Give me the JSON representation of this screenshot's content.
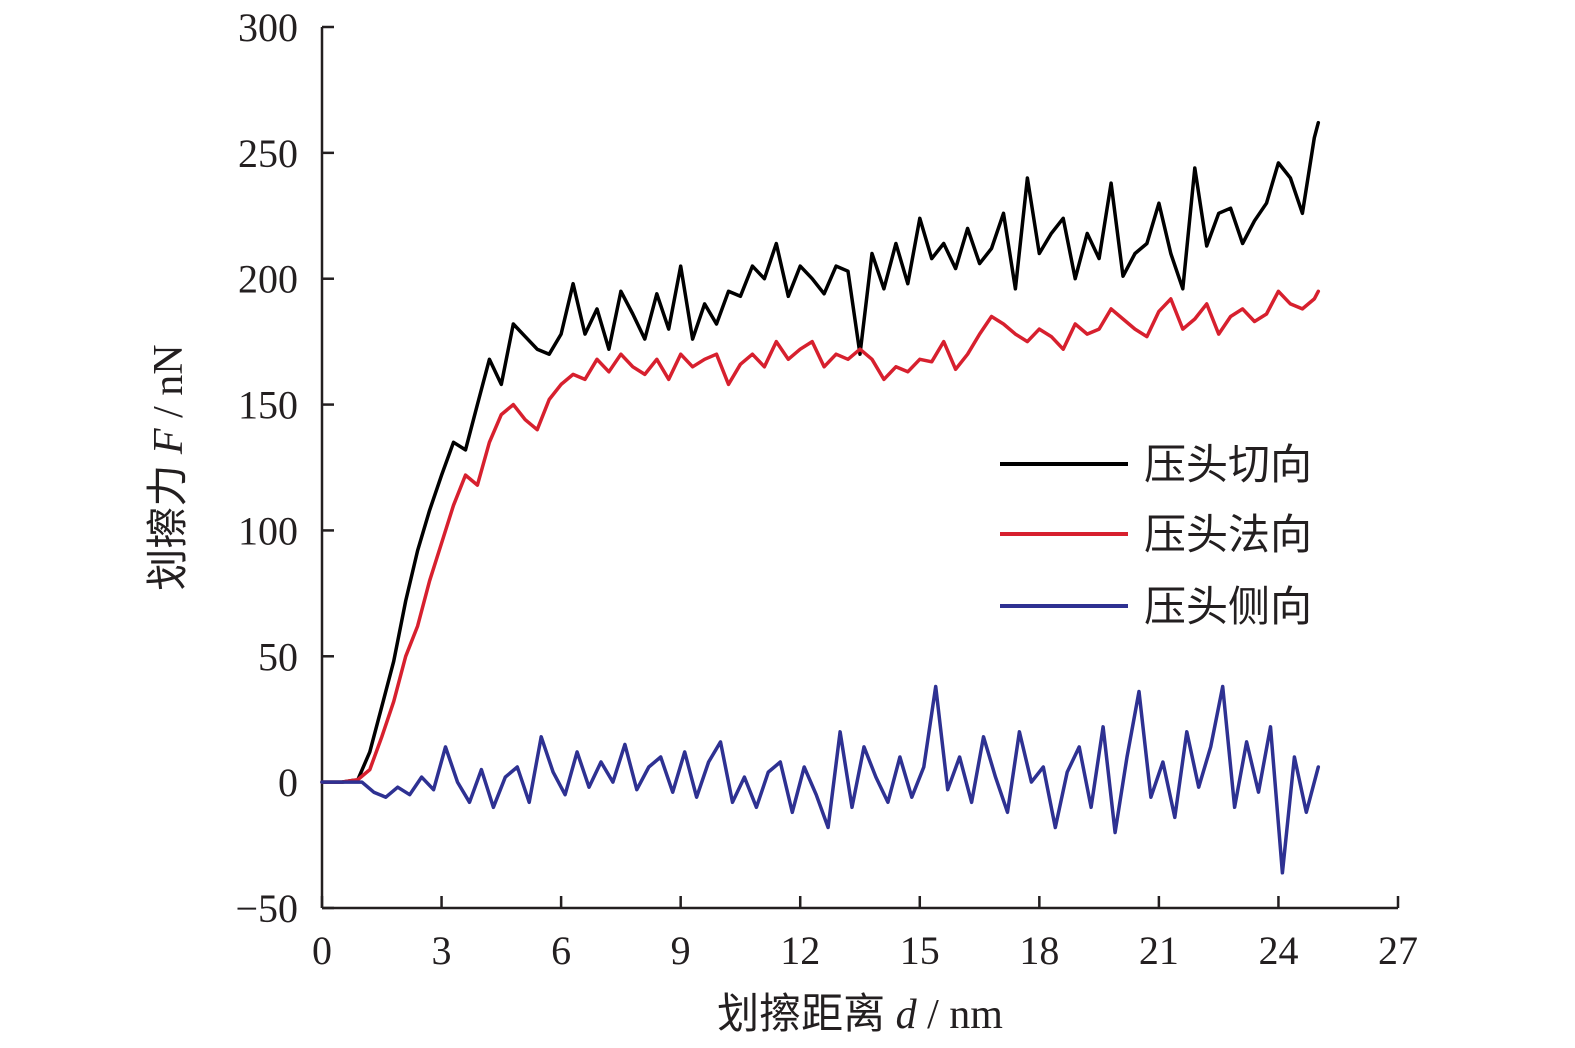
{
  "chart_data": {
    "type": "line",
    "xlabel": {
      "prefix": "划擦距离 ",
      "var": "d",
      "unit": " / nm"
    },
    "ylabel": {
      "prefix": "划擦力 ",
      "var": "F",
      "unit": " / nN"
    },
    "xlim": [
      0,
      27
    ],
    "ylim": [
      -50,
      300
    ],
    "xticks": [
      0,
      3,
      6,
      9,
      12,
      15,
      18,
      21,
      24,
      27
    ],
    "yticks": [
      -50,
      0,
      50,
      100,
      150,
      200,
      250,
      300
    ],
    "ytick_labels": [
      "−50",
      "0",
      "50",
      "100",
      "150",
      "200",
      "250",
      "300"
    ],
    "grid": false,
    "legend_position": "center-right",
    "series": [
      {
        "name": "压头切向",
        "color": "#000000",
        "x": [
          0,
          0.5,
          0.9,
          1.2,
          1.5,
          1.8,
          2.1,
          2.4,
          2.7,
          3.0,
          3.3,
          3.6,
          3.9,
          4.2,
          4.5,
          4.8,
          5.1,
          5.4,
          5.7,
          6.0,
          6.3,
          6.6,
          6.9,
          7.2,
          7.5,
          7.8,
          8.1,
          8.4,
          8.7,
          9.0,
          9.3,
          9.6,
          9.9,
          10.2,
          10.5,
          10.8,
          11.1,
          11.4,
          11.7,
          12.0,
          12.3,
          12.6,
          12.9,
          13.2,
          13.5,
          13.8,
          14.1,
          14.4,
          14.7,
          15.0,
          15.3,
          15.6,
          15.9,
          16.2,
          16.5,
          16.8,
          17.1,
          17.4,
          17.7,
          18.0,
          18.3,
          18.6,
          18.9,
          19.2,
          19.5,
          19.8,
          20.1,
          20.4,
          20.7,
          21.0,
          21.3,
          21.6,
          21.9,
          22.2,
          22.5,
          22.8,
          23.1,
          23.4,
          23.7,
          24.0,
          24.3,
          24.6,
          24.9,
          25.0
        ],
        "y": [
          0,
          0,
          1,
          12,
          30,
          48,
          72,
          92,
          108,
          122,
          135,
          132,
          150,
          168,
          158,
          182,
          177,
          172,
          170,
          178,
          198,
          178,
          188,
          172,
          195,
          186,
          176,
          194,
          180,
          205,
          176,
          190,
          182,
          195,
          193,
          205,
          200,
          214,
          193,
          205,
          200,
          194,
          205,
          203,
          170,
          210,
          196,
          214,
          198,
          224,
          208,
          214,
          204,
          220,
          206,
          212,
          226,
          196,
          240,
          210,
          218,
          224,
          200,
          218,
          208,
          238,
          201,
          210,
          214,
          230,
          210,
          196,
          244,
          213,
          226,
          228,
          214,
          223,
          230,
          246,
          240,
          226,
          256,
          262
        ]
      },
      {
        "name": "压头法向",
        "color": "#d7202e",
        "x": [
          0,
          0.5,
          0.9,
          1.2,
          1.5,
          1.8,
          2.1,
          2.4,
          2.7,
          3.0,
          3.3,
          3.6,
          3.9,
          4.2,
          4.5,
          4.8,
          5.1,
          5.4,
          5.7,
          6.0,
          6.3,
          6.6,
          6.9,
          7.2,
          7.5,
          7.8,
          8.1,
          8.4,
          8.7,
          9.0,
          9.3,
          9.6,
          9.9,
          10.2,
          10.5,
          10.8,
          11.1,
          11.4,
          11.7,
          12.0,
          12.3,
          12.6,
          12.9,
          13.2,
          13.5,
          13.8,
          14.1,
          14.4,
          14.7,
          15.0,
          15.3,
          15.6,
          15.9,
          16.2,
          16.5,
          16.8,
          17.1,
          17.4,
          17.7,
          18.0,
          18.3,
          18.6,
          18.9,
          19.2,
          19.5,
          19.8,
          20.1,
          20.4,
          20.7,
          21.0,
          21.3,
          21.6,
          21.9,
          22.2,
          22.5,
          22.8,
          23.1,
          23.4,
          23.7,
          24.0,
          24.3,
          24.6,
          24.9,
          25.0
        ],
        "y": [
          0,
          0,
          1,
          5,
          18,
          32,
          50,
          62,
          80,
          95,
          110,
          122,
          118,
          135,
          146,
          150,
          144,
          140,
          152,
          158,
          162,
          160,
          168,
          163,
          170,
          165,
          162,
          168,
          160,
          170,
          165,
          168,
          170,
          158,
          166,
          170,
          165,
          175,
          168,
          172,
          175,
          165,
          170,
          168,
          172,
          168,
          160,
          165,
          163,
          168,
          167,
          175,
          164,
          170,
          178,
          185,
          182,
          178,
          175,
          180,
          177,
          172,
          182,
          178,
          180,
          188,
          184,
          180,
          177,
          187,
          192,
          180,
          184,
          190,
          178,
          185,
          188,
          183,
          186,
          195,
          190,
          188,
          192,
          195
        ]
      },
      {
        "name": "压头侧向",
        "color": "#2e3192",
        "x": [
          0,
          0.5,
          1.0,
          1.3,
          1.6,
          1.9,
          2.2,
          2.5,
          2.8,
          3.1,
          3.4,
          3.7,
          4.0,
          4.3,
          4.6,
          4.9,
          5.2,
          5.5,
          5.8,
          6.1,
          6.4,
          6.7,
          7.0,
          7.3,
          7.6,
          7.9,
          8.2,
          8.5,
          8.8,
          9.1,
          9.4,
          9.7,
          10.0,
          10.3,
          10.6,
          10.9,
          11.2,
          11.5,
          11.8,
          12.1,
          12.4,
          12.7,
          13.0,
          13.3,
          13.6,
          13.9,
          14.2,
          14.5,
          14.8,
          15.1,
          15.4,
          15.7,
          16.0,
          16.3,
          16.6,
          16.9,
          17.2,
          17.5,
          17.8,
          18.1,
          18.4,
          18.7,
          19.0,
          19.3,
          19.6,
          19.9,
          20.2,
          20.5,
          20.8,
          21.1,
          21.4,
          21.7,
          22.0,
          22.3,
          22.6,
          22.9,
          23.2,
          23.5,
          23.8,
          24.1,
          24.4,
          24.7,
          25.0
        ],
        "y": [
          0,
          0,
          0,
          -4,
          -6,
          -2,
          -5,
          2,
          -3,
          14,
          0,
          -8,
          5,
          -10,
          2,
          6,
          -8,
          18,
          4,
          -5,
          12,
          -2,
          8,
          0,
          15,
          -3,
          6,
          10,
          -4,
          12,
          -6,
          8,
          16,
          -8,
          2,
          -10,
          4,
          8,
          -12,
          6,
          -5,
          -18,
          20,
          -10,
          14,
          2,
          -8,
          10,
          -6,
          6,
          38,
          -3,
          10,
          -8,
          18,
          2,
          -12,
          20,
          0,
          6,
          -18,
          4,
          14,
          -10,
          22,
          -20,
          10,
          36,
          -6,
          8,
          -14,
          20,
          -2,
          14,
          38,
          -10,
          16,
          -4,
          22,
          -36,
          10,
          -12,
          6
        ]
      }
    ]
  }
}
